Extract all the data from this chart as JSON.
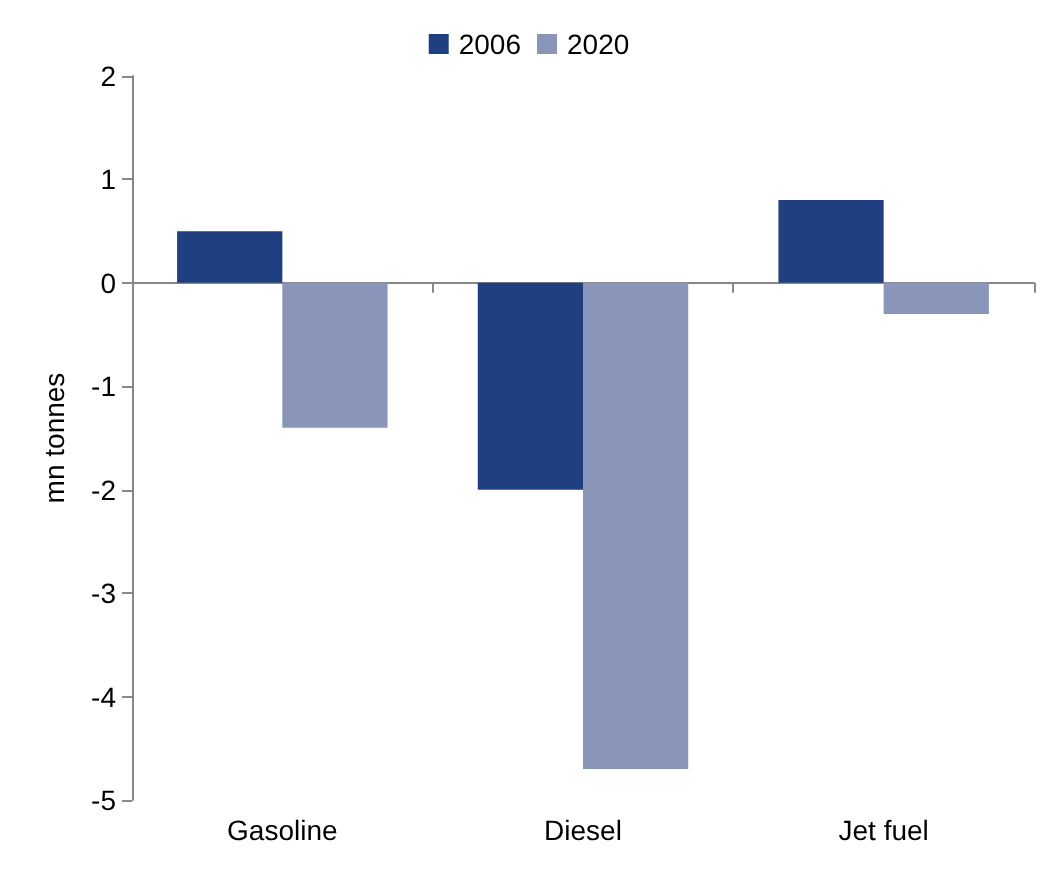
{
  "chart_data": {
    "type": "bar",
    "ylabel": "mn tonnes",
    "categories": [
      "Gasoline",
      "Diesel",
      "Jet fuel"
    ],
    "series": [
      {
        "name": "2006",
        "color": "#203f80",
        "values": [
          0.5,
          -2.0,
          0.8
        ]
      },
      {
        "name": "2020",
        "color": "#8a96b9",
        "values": [
          -1.4,
          -4.7,
          -0.3
        ]
      }
    ],
    "ylim": [
      -5,
      2
    ],
    "yticks": [
      -5,
      -4,
      -3,
      -2,
      -1,
      0,
      1,
      2
    ],
    "legend": "top"
  }
}
